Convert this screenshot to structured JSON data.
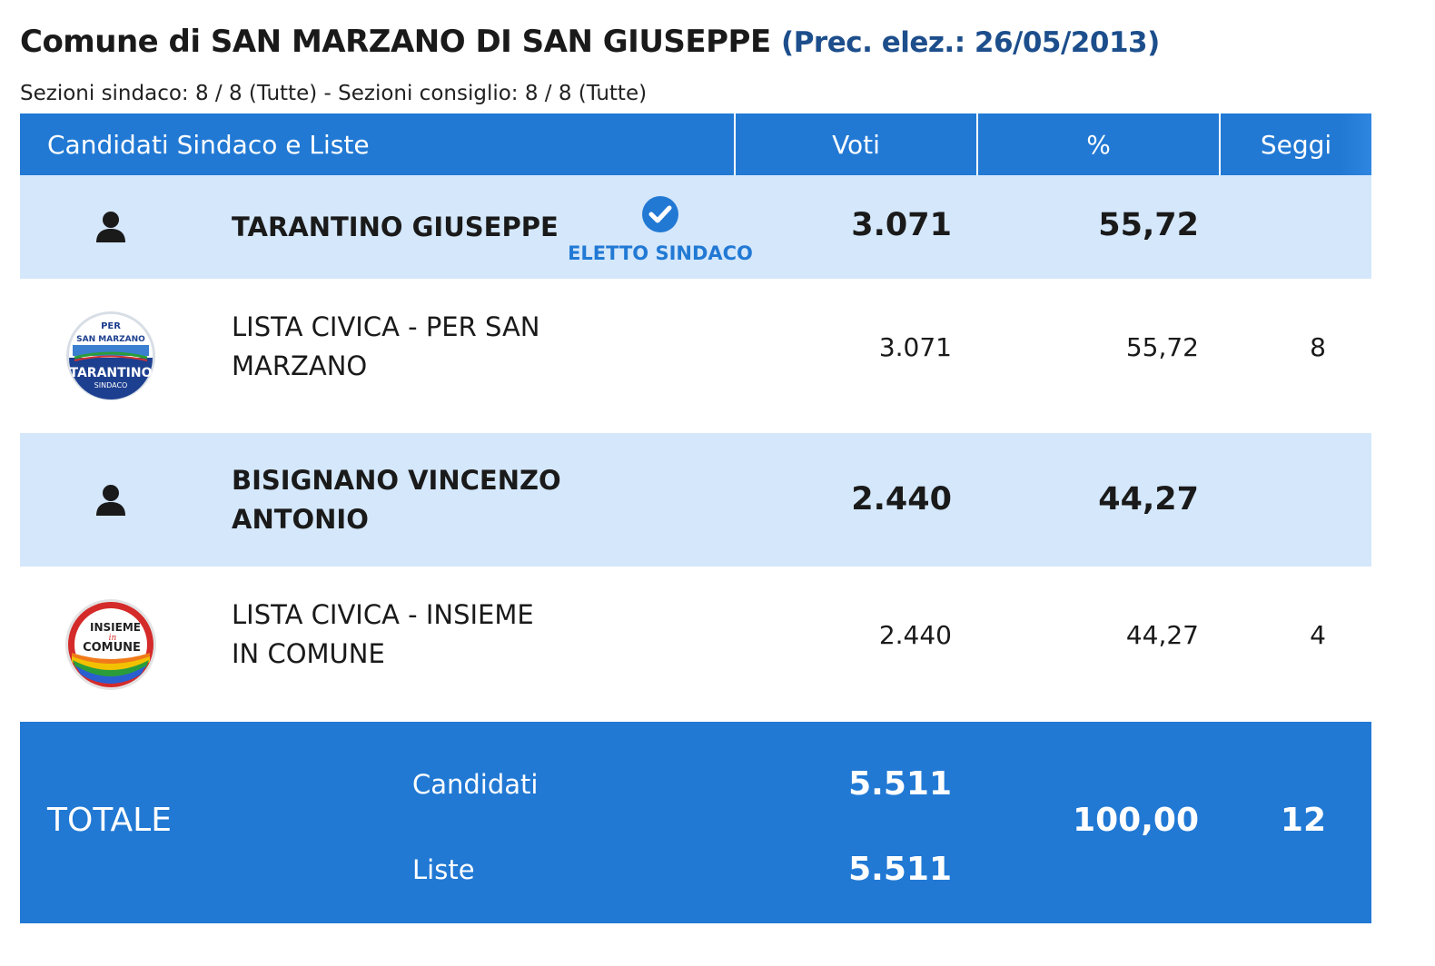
{
  "header": {
    "title": "Comune di SAN MARZANO DI SAN GIUSEPPE",
    "prev_election": "(Prec. elez.: 26/05/2013)",
    "sections": "Sezioni sindaco: 8 / 8 (Tutte) - Sezioni consiglio: 8 / 8 (Tutte)"
  },
  "table": {
    "columns": {
      "name": "Candidati Sindaco e Liste",
      "votes": "Voti",
      "percent": "%",
      "seats": "Seggi"
    },
    "rows": [
      {
        "type": "candidate",
        "icon": "person-icon",
        "name": "TARANTINO GIUSEPPE",
        "elected_label": "ELETTO SINDACO",
        "votes": "3.071",
        "percent": "55,72",
        "seats": ""
      },
      {
        "type": "list",
        "logo": "per-san-marzano-logo",
        "logo_text": [
          "PER",
          "SAN MARZANO",
          "TARANTINO",
          "SINDACO"
        ],
        "name_lines": [
          "LISTA CIVICA - PER SAN",
          "MARZANO"
        ],
        "votes": "3.071",
        "percent": "55,72",
        "seats": "8"
      },
      {
        "type": "candidate",
        "icon": "person-icon",
        "name_lines": [
          "BISIGNANO VINCENZO",
          "ANTONIO"
        ],
        "votes": "2.440",
        "percent": "44,27",
        "seats": ""
      },
      {
        "type": "list",
        "logo": "insieme-in-comune-logo",
        "logo_text": [
          "INSIEME",
          "in",
          "COMUNE"
        ],
        "name_lines": [
          "LISTA CIVICA - INSIEME",
          "IN COMUNE"
        ],
        "votes": "2.440",
        "percent": "44,27",
        "seats": "4"
      }
    ],
    "total": {
      "label": "TOTALE",
      "candidates_label": "Candidati",
      "candidates_votes": "5.511",
      "lists_label": "Liste",
      "lists_votes": "5.511",
      "percent": "100,00",
      "seats": "12"
    }
  },
  "colors": {
    "header_blue": "#2179d4",
    "candidate_row": "#d4e7fb",
    "prev_election_text": "#1d4e8c"
  }
}
